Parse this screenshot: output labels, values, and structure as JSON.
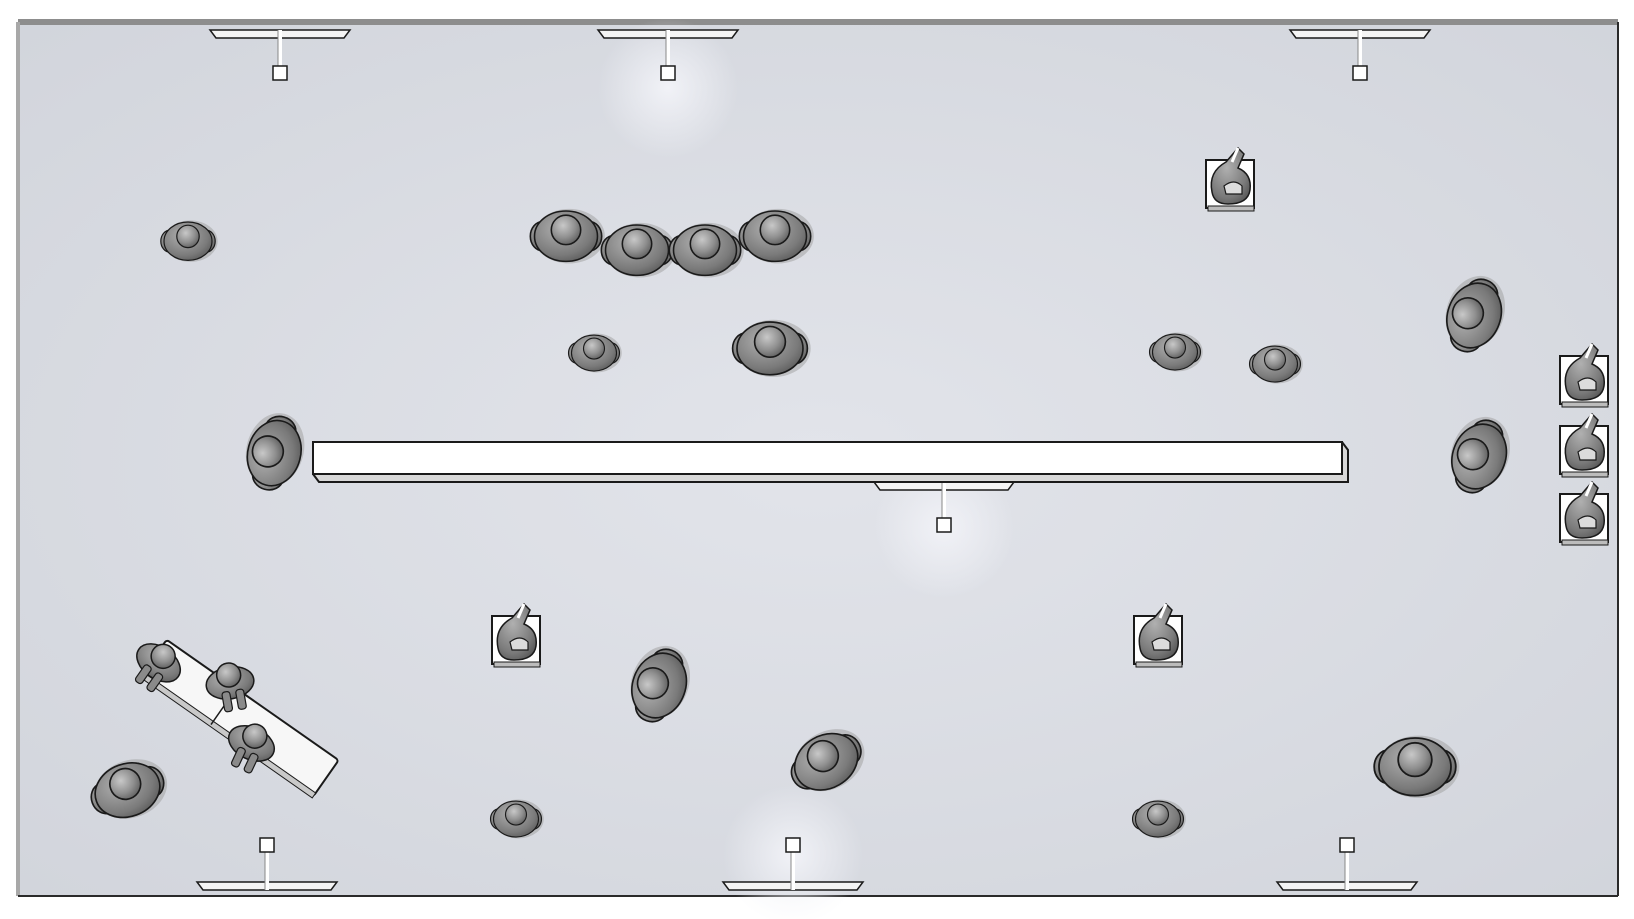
{
  "scene": {
    "kind": "top-down gallery room render",
    "colors": {
      "floor": "#dcdee4",
      "floor_vignette": "#cfd2d9",
      "wall": "#8a8a8a",
      "wall_shadow": "#b5b5b5",
      "partition": "#ffffff",
      "person_dark": "#6f6f6f",
      "person_mid": "#9a9a9a",
      "person_light": "#bdbdbd",
      "light_glow": "#eef0f6",
      "outline": "#1a1a1a"
    },
    "icons": {
      "ceiling_light": "track-light-icon",
      "visitor": "visitor-figure-icon",
      "seated_visitor": "seated-visitor-icon",
      "bench": "bench-icon",
      "partition": "partition-wall-icon"
    }
  }
}
